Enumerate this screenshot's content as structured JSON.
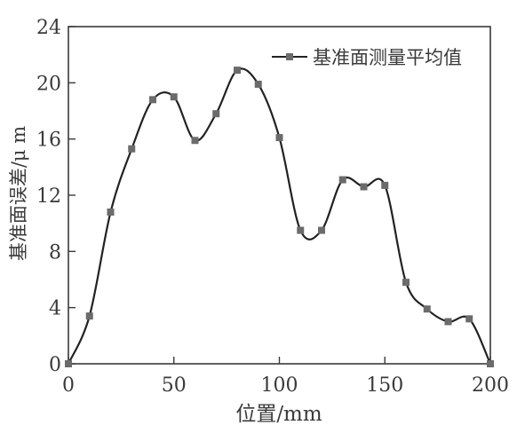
{
  "chart_data": {
    "type": "line",
    "title": "",
    "xlabel": "位置/mm",
    "ylabel": "基准面误差/μ m",
    "xlim": [
      0,
      200
    ],
    "ylim": [
      0,
      24
    ],
    "x_ticks": [
      0,
      50,
      100,
      150,
      200
    ],
    "y_ticks": [
      0,
      4,
      8,
      12,
      16,
      20,
      24
    ],
    "legend_position": "top-right",
    "grid": false,
    "series": [
      {
        "name": "基准面测量平均值",
        "color": "#222222",
        "marker_color": "#6b6b6b",
        "x": [
          0,
          10,
          20,
          30,
          40,
          50,
          60,
          70,
          80,
          90,
          100,
          110,
          120,
          130,
          140,
          150,
          160,
          170,
          180,
          190,
          200
        ],
        "y": [
          0.0,
          3.4,
          10.8,
          15.3,
          18.8,
          19.0,
          15.9,
          17.8,
          20.9,
          19.9,
          16.1,
          9.5,
          9.5,
          13.1,
          12.6,
          12.7,
          5.8,
          3.9,
          3.0,
          3.2,
          0.0
        ]
      }
    ]
  }
}
